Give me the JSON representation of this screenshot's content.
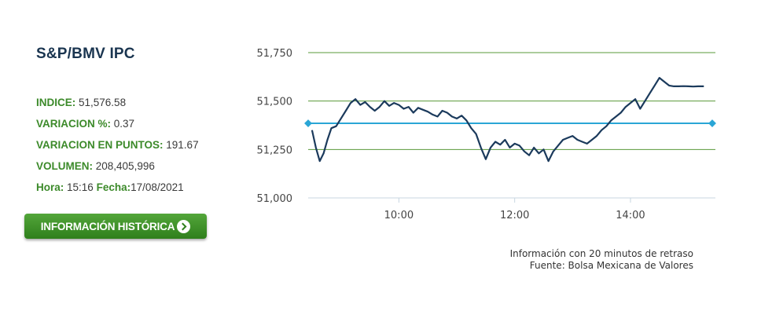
{
  "widget": {
    "title": "S&P/BMV IPC",
    "stats": [
      {
        "label": "INDICE:",
        "value": "51,576.58"
      },
      {
        "label": "VARIACION %:",
        "value": "0.37"
      },
      {
        "label": "VARIACION EN PUNTOS:",
        "value": "191.67"
      },
      {
        "label": "VOLUMEN:",
        "value": "208,405,996"
      }
    ],
    "hora_label": "Hora:",
    "hora_value": "15:16",
    "fecha_label": "Fecha:",
    "fecha_value": "17/08/2021",
    "button_label": "INFORMACIÓN HISTÓRICA",
    "note_line1": "Información con 20 minutos de retraso",
    "note_line2": "Fuente: Bolsa Mexicana de Valores"
  },
  "colors": {
    "label_green": "#3c8a2a",
    "title_navy": "#1a3550",
    "series_line": "#1b3a5c",
    "reference_line": "#2aa6d6",
    "grid_line": "#5a9a3a",
    "button_green": "#3f932a"
  },
  "chart_data": {
    "type": "line",
    "y_ticks": [
      "51,750",
      "51,500",
      "51,250",
      "51,000"
    ],
    "x_ticks": [
      "10:00",
      "12:00",
      "14:00"
    ],
    "ylim": [
      51000,
      51750
    ],
    "x_range": [
      "08:30",
      "15:16"
    ],
    "reference_value": 51385,
    "series": [
      {
        "x": [
          "08:30",
          "08:34",
          "08:38",
          "08:42",
          "08:46",
          "08:50",
          "08:55",
          "09:00",
          "09:05",
          "09:10",
          "09:15",
          "09:20",
          "09:25",
          "09:30",
          "09:35",
          "09:40",
          "09:45",
          "09:50",
          "09:55",
          "10:00",
          "10:05",
          "10:10",
          "10:15",
          "10:20",
          "10:25",
          "10:30",
          "10:35",
          "10:40",
          "10:45",
          "10:50",
          "10:55",
          "11:00",
          "11:05",
          "11:10",
          "11:15",
          "11:20",
          "11:25",
          "11:30",
          "11:35",
          "11:40",
          "11:45",
          "11:50",
          "11:55",
          "12:00",
          "12:05",
          "12:10",
          "12:15",
          "12:20",
          "12:25",
          "12:30",
          "12:35",
          "12:40",
          "12:45",
          "12:50",
          "12:55",
          "13:00",
          "13:05",
          "13:10",
          "13:15",
          "13:20",
          "13:25",
          "13:30",
          "13:35",
          "13:40",
          "13:45",
          "13:50",
          "13:55",
          "14:00",
          "14:05",
          "14:10",
          "14:15",
          "14:20",
          "14:25",
          "14:30",
          "14:35",
          "14:40",
          "14:45",
          "14:50",
          "14:55",
          "15:00",
          "15:05",
          "15:10",
          "15:16"
        ],
        "values": [
          51350,
          51260,
          51190,
          51230,
          51300,
          51360,
          51370,
          51410,
          51450,
          51490,
          51510,
          51480,
          51495,
          51470,
          51450,
          51470,
          51500,
          51475,
          51490,
          51480,
          51460,
          51470,
          51440,
          51465,
          51455,
          51445,
          51430,
          51420,
          51450,
          51440,
          51420,
          51410,
          51425,
          51400,
          51360,
          51330,
          51260,
          51200,
          51260,
          51290,
          51275,
          51300,
          51260,
          51280,
          51270,
          51240,
          51220,
          51260,
          51230,
          51250,
          51190,
          51240,
          51270,
          51300,
          51310,
          51320,
          51300,
          51290,
          51280,
          51300,
          51320,
          51350,
          51370,
          51400,
          51420,
          51440,
          51470,
          51490,
          51510,
          51460,
          51500,
          51540,
          51580,
          51620,
          51600,
          51580,
          51576,
          51576,
          51577,
          51576,
          51575,
          51576,
          51576
        ]
      }
    ]
  }
}
